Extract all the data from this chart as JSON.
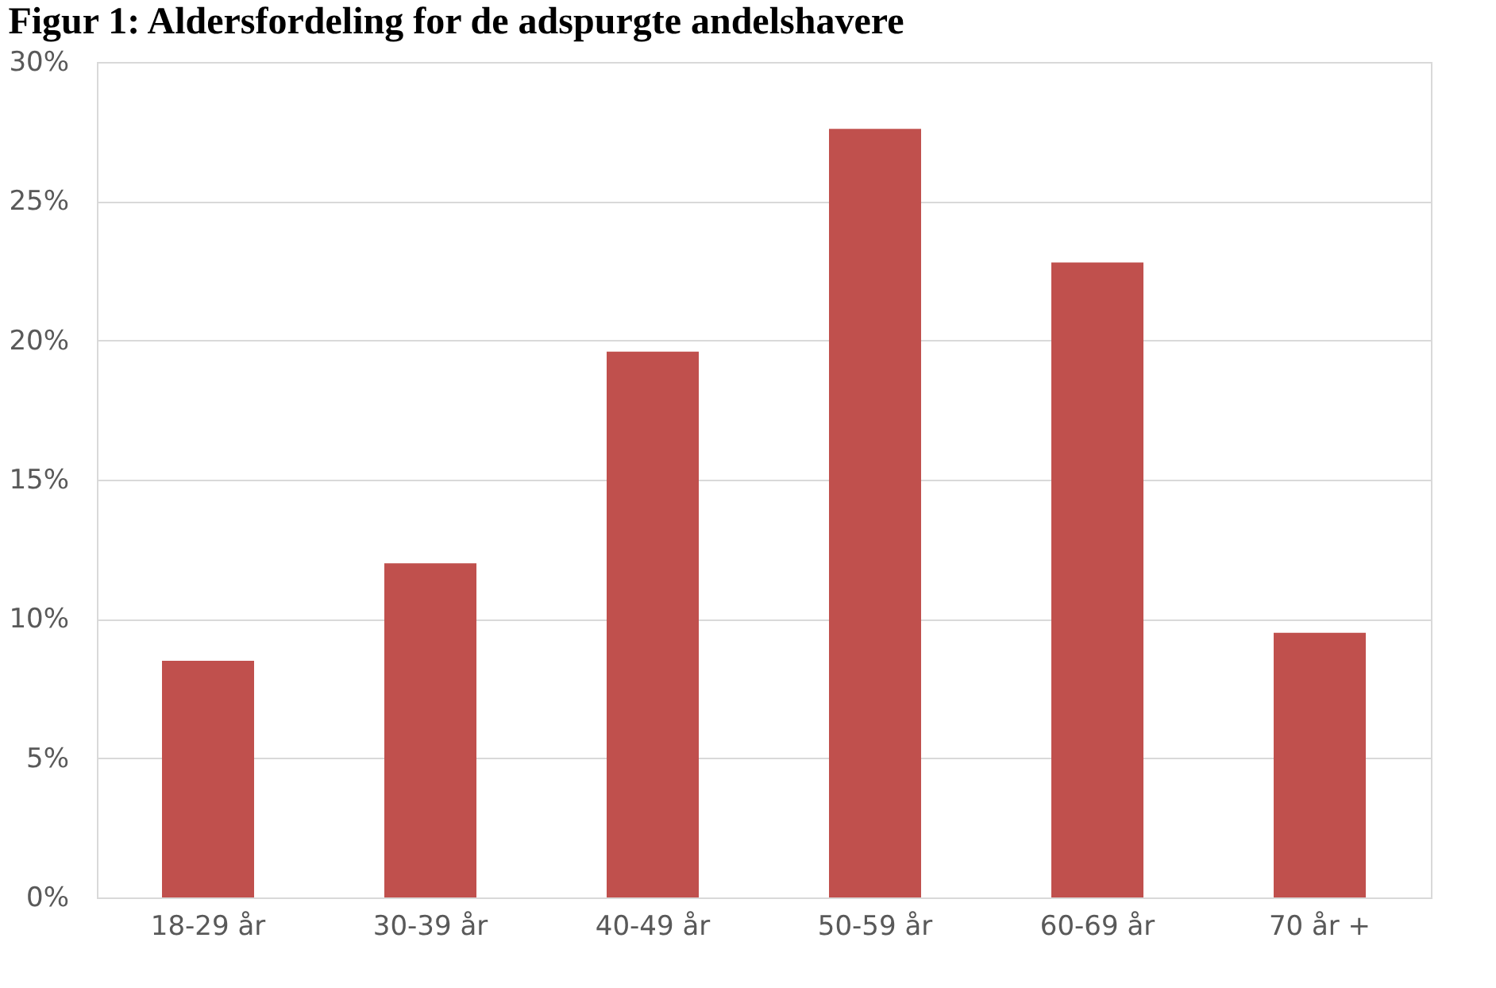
{
  "chart_data": {
    "type": "bar",
    "title": "Figur 1: Aldersfordeling for de adspurgte andelshavere",
    "categories": [
      "18-29 år",
      "30-39 år",
      "40-49 år",
      "50-59 år",
      "60-69 år",
      "70 år +"
    ],
    "values": [
      8.5,
      12.0,
      19.6,
      27.6,
      22.8,
      9.5
    ],
    "color": "#c0504d",
    "ylim": [
      0,
      30
    ],
    "yticks": [
      {
        "value": 0,
        "label": "0%"
      },
      {
        "value": 5,
        "label": "5%"
      },
      {
        "value": 10,
        "label": "10%"
      },
      {
        "value": 15,
        "label": "15%"
      },
      {
        "value": 20,
        "label": "20%"
      },
      {
        "value": 25,
        "label": "25%"
      },
      {
        "value": 30,
        "label": "30%"
      }
    ],
    "grid": "y"
  }
}
